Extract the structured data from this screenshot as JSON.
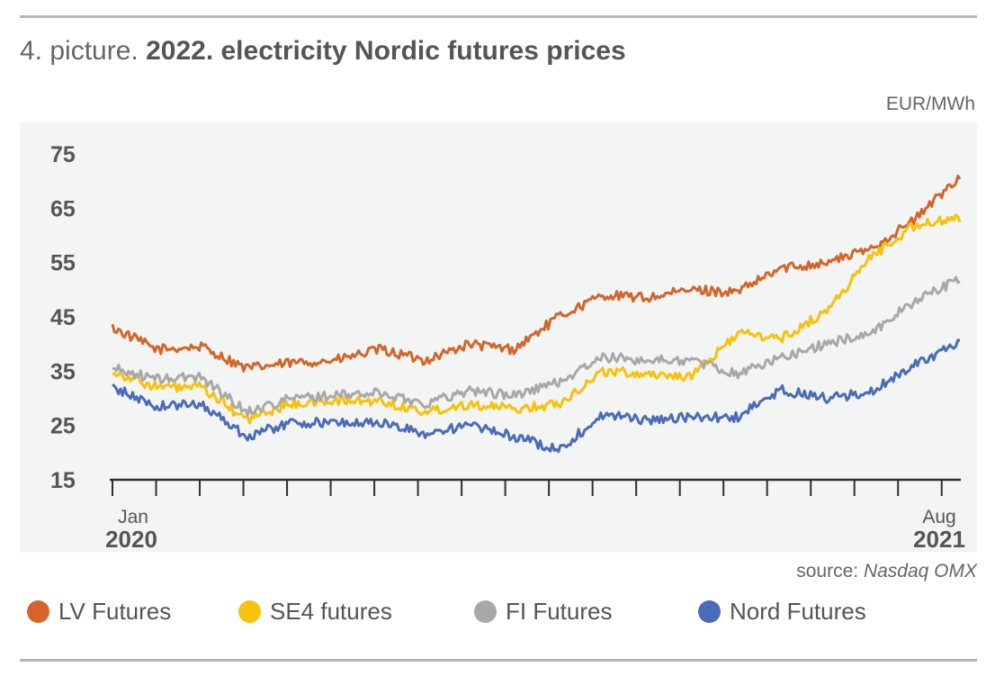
{
  "header": {
    "title_prefix": "4. picture.",
    "title_bold": "2022. electricity Nordic futures prices",
    "unit": "EUR/MWh"
  },
  "footer": {
    "source_label": "source:",
    "source_name": "Nasdaq OMX"
  },
  "x_axis": {
    "start_month": "Jan",
    "start_year": "2020",
    "end_month": "Aug",
    "end_year": "2021"
  },
  "legend": [
    {
      "label": "LV Futures",
      "color": "#d4652a"
    },
    {
      "label": "SE4 futures",
      "color": "#f7c20b"
    },
    {
      "label": "FI Futures",
      "color": "#a8a8a8"
    },
    {
      "label": "Nord Futures",
      "color": "#4a6cb8"
    }
  ],
  "chart_data": {
    "type": "line",
    "title": "2022. electricity Nordic futures prices",
    "ylabel": "EUR/MWh",
    "ylim": [
      15,
      75
    ],
    "yticks": [
      75,
      65,
      55,
      45,
      35,
      25,
      15
    ],
    "x": [
      "2020-01",
      "2020-02",
      "2020-03",
      "2020-04",
      "2020-05",
      "2020-06",
      "2020-07",
      "2020-08",
      "2020-09",
      "2020-10",
      "2020-11",
      "2020-12",
      "2021-01",
      "2021-02",
      "2021-03",
      "2021-04",
      "2021-05",
      "2021-06",
      "2021-07",
      "2021-08"
    ],
    "grid": false,
    "legend_position": "bottom",
    "series": [
      {
        "name": "LV Futures",
        "color": "#d4652a",
        "values": [
          43,
          39,
          39.5,
          35.5,
          36.5,
          37,
          39,
          37,
          40,
          39,
          45,
          49,
          48.5,
          50,
          49.5,
          54,
          55,
          57.5,
          63,
          71
        ]
      },
      {
        "name": "SE4 futures",
        "color": "#f7c20b",
        "values": [
          35,
          32,
          32,
          26,
          29,
          29.5,
          29.5,
          27.5,
          29,
          28,
          29,
          35,
          34.5,
          34,
          42,
          41,
          46,
          56,
          62,
          63
        ]
      },
      {
        "name": "FI Futures",
        "color": "#a8a8a8",
        "values": [
          35.5,
          33.5,
          34,
          27.5,
          30,
          30.5,
          31,
          29,
          31.5,
          30.5,
          33,
          37.5,
          37,
          37,
          34.5,
          37.5,
          40,
          42,
          48,
          52
        ]
      },
      {
        "name": "Nord Futures",
        "color": "#4a6cb8",
        "values": [
          32,
          28.5,
          29,
          23,
          25.5,
          25.5,
          25.5,
          23.5,
          25,
          23,
          20.5,
          27,
          26,
          26.5,
          26.5,
          31.5,
          30,
          31,
          36.5,
          40
        ]
      }
    ]
  }
}
